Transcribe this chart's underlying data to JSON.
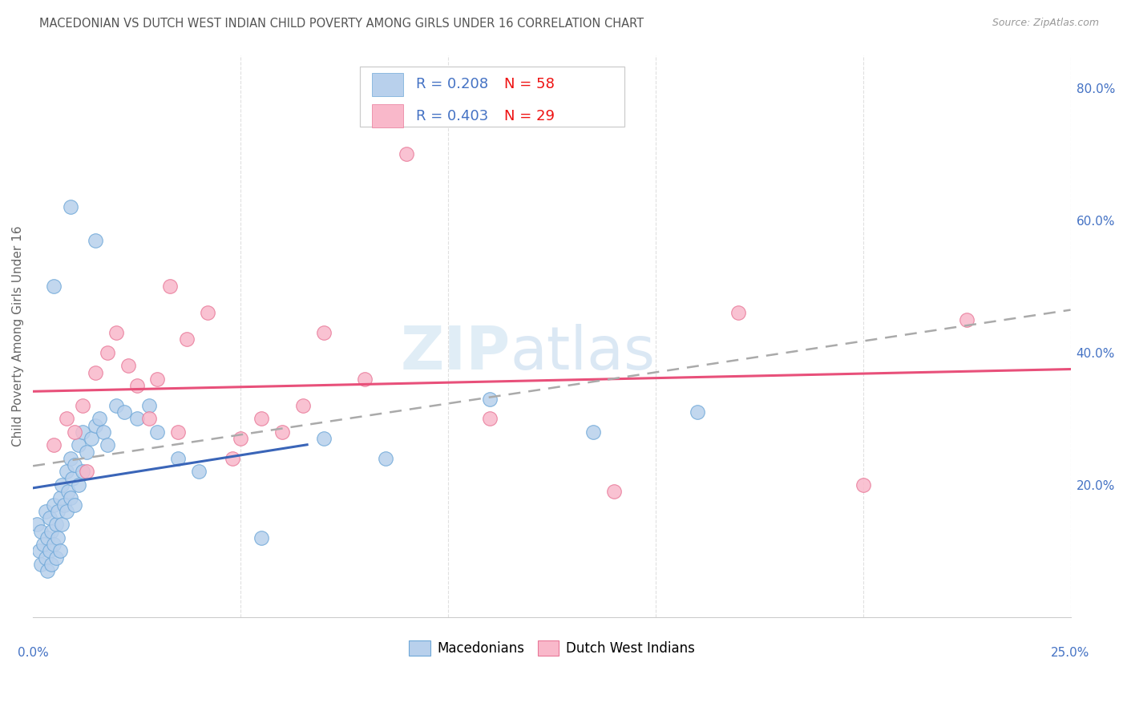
{
  "title": "MACEDONIAN VS DUTCH WEST INDIAN CHILD POVERTY AMONG GIRLS UNDER 16 CORRELATION CHART",
  "source": "Source: ZipAtlas.com",
  "ylabel": "Child Poverty Among Girls Under 16",
  "xlim": [
    0.0,
    25.0
  ],
  "ylim": [
    0.0,
    85.0
  ],
  "yticks": [
    0.0,
    20.0,
    40.0,
    60.0,
    80.0
  ],
  "ytick_labels": [
    "",
    "20.0%",
    "40.0%",
    "60.0%",
    "80.0%"
  ],
  "macedonian_color": "#b8d0ec",
  "macedonian_edge": "#6fa8d8",
  "dutch_color": "#f9b8ca",
  "dutch_edge": "#e87898",
  "regression_mac_color": "#3a65b8",
  "regression_dutch_color": "#e8507a",
  "regression_combined_color": "#aaaaaa",
  "background_color": "#ffffff",
  "grid_color": "#e0e0e0",
  "title_color": "#555555",
  "axis_label_color": "#666666",
  "tick_color": "#4472c4",
  "legend_color": "#4472c4",
  "legend_n_color": "#ee1111",
  "title_fontsize": 10.5,
  "axis_label_fontsize": 11,
  "tick_fontsize": 11,
  "legend_fontsize": 13,
  "source_fontsize": 9,
  "mac_R": "0.208",
  "mac_N": "58",
  "dutch_R": "0.403",
  "dutch_N": "29",
  "macedonian_x": [
    0.1,
    0.15,
    0.2,
    0.2,
    0.25,
    0.3,
    0.3,
    0.35,
    0.35,
    0.4,
    0.4,
    0.45,
    0.45,
    0.5,
    0.5,
    0.55,
    0.55,
    0.6,
    0.6,
    0.65,
    0.65,
    0.7,
    0.7,
    0.75,
    0.8,
    0.8,
    0.85,
    0.9,
    0.9,
    0.95,
    1.0,
    1.0,
    1.1,
    1.1,
    1.2,
    1.2,
    1.3,
    1.4,
    1.5,
    1.6,
    1.7,
    1.8,
    2.0,
    2.2,
    2.5,
    3.0,
    3.5,
    4.0,
    5.5,
    7.0,
    8.5,
    11.0,
    13.5,
    0.5,
    0.9,
    1.5,
    2.8,
    16.0
  ],
  "macedonian_y": [
    14.0,
    10.0,
    8.0,
    13.0,
    11.0,
    9.0,
    16.0,
    12.0,
    7.0,
    15.0,
    10.0,
    8.0,
    13.0,
    17.0,
    11.0,
    9.0,
    14.0,
    16.0,
    12.0,
    10.0,
    18.0,
    20.0,
    14.0,
    17.0,
    22.0,
    16.0,
    19.0,
    24.0,
    18.0,
    21.0,
    23.0,
    17.0,
    26.0,
    20.0,
    28.0,
    22.0,
    25.0,
    27.0,
    29.0,
    30.0,
    28.0,
    26.0,
    32.0,
    31.0,
    30.0,
    28.0,
    24.0,
    22.0,
    12.0,
    27.0,
    24.0,
    33.0,
    28.0,
    50.0,
    62.0,
    57.0,
    32.0,
    31.0
  ],
  "dutch_x": [
    0.5,
    0.8,
    1.0,
    1.2,
    1.5,
    1.8,
    2.0,
    2.3,
    2.5,
    2.8,
    3.0,
    3.3,
    3.7,
    4.2,
    5.0,
    5.5,
    6.0,
    6.5,
    7.0,
    8.0,
    9.0,
    11.0,
    14.0,
    17.0,
    20.0,
    22.5,
    3.5,
    4.8,
    1.3
  ],
  "dutch_y": [
    26.0,
    30.0,
    28.0,
    32.0,
    37.0,
    40.0,
    43.0,
    38.0,
    35.0,
    30.0,
    36.0,
    50.0,
    42.0,
    46.0,
    27.0,
    30.0,
    28.0,
    32.0,
    43.0,
    36.0,
    70.0,
    30.0,
    19.0,
    46.0,
    20.0,
    45.0,
    28.0,
    24.0,
    22.0
  ],
  "bottom_legend_labels": [
    "Macedonians",
    "Dutch West Indians"
  ]
}
